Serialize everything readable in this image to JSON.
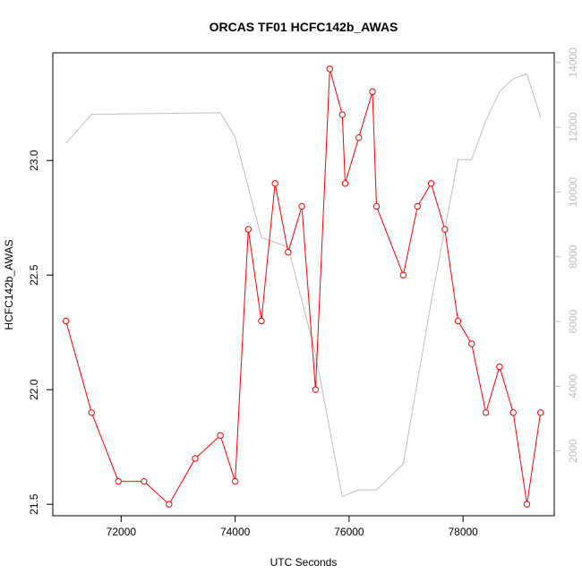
{
  "chart_data": {
    "type": "line",
    "title": "ORCAS TF01 HCFC142b_AWAS",
    "xlabel": "UTC Seconds",
    "ylabel": "HCFC142b_AWAS",
    "xlim": [
      70800,
      79600
    ],
    "ylim": [
      21.45,
      23.47
    ],
    "y2lim": [
      0,
      14300
    ],
    "x_ticks": [
      72000,
      74000,
      76000,
      78000
    ],
    "x_tick_labels": [
      "72000",
      "74000",
      "76000",
      "78000"
    ],
    "y_ticks": [
      21.5,
      22.0,
      22.5,
      23.0
    ],
    "y_tick_labels": [
      "21.5",
      "22.0",
      "22.5",
      "23.0"
    ],
    "y2_ticks": [
      2000,
      4000,
      6000,
      8000,
      10000,
      12000,
      14000
    ],
    "y2_tick_labels": [
      "2000",
      "4000",
      "6000",
      "8000",
      "10000",
      "12000",
      "14000"
    ],
    "grid": false,
    "colors": {
      "primary": "#ff0000",
      "secondary": "#bebebe",
      "axis": "#000000"
    },
    "series": [
      {
        "axis": "left",
        "color": "#ff0000",
        "marker": "open-circle",
        "points": [
          [
            71030,
            22.3
          ],
          [
            71480,
            21.9
          ],
          [
            71950,
            21.6
          ],
          [
            72400,
            21.6
          ],
          [
            72840,
            21.5
          ],
          [
            73300,
            21.7
          ],
          [
            73740,
            21.8
          ],
          [
            74000,
            21.6
          ],
          [
            74230,
            22.7
          ],
          [
            74460,
            22.3
          ],
          [
            74700,
            22.9
          ],
          [
            74930,
            22.6
          ],
          [
            75170,
            22.8
          ],
          [
            75410,
            22.0
          ],
          [
            75660,
            23.4
          ],
          [
            75880,
            23.2
          ],
          [
            75930,
            22.9
          ],
          [
            76170,
            23.1
          ],
          [
            76410,
            23.3
          ],
          [
            76480,
            22.8
          ],
          [
            76950,
            22.5
          ],
          [
            77200,
            22.8
          ],
          [
            77440,
            22.9
          ],
          [
            77680,
            22.7
          ],
          [
            77910,
            22.3
          ],
          [
            78150,
            22.2
          ],
          [
            78400,
            21.9
          ],
          [
            78640,
            22.1
          ],
          [
            78880,
            21.9
          ],
          [
            79120,
            21.5
          ],
          [
            79360,
            21.9
          ]
        ]
      },
      {
        "axis": "right",
        "color": "#bebebe",
        "marker": "none",
        "points": [
          [
            71030,
            11500
          ],
          [
            71480,
            12400
          ],
          [
            73740,
            12450
          ],
          [
            74000,
            11700
          ],
          [
            74460,
            8600
          ],
          [
            74930,
            8300
          ],
          [
            75410,
            5000
          ],
          [
            75880,
            600
          ],
          [
            76170,
            800
          ],
          [
            76480,
            800
          ],
          [
            76950,
            1600
          ],
          [
            77440,
            6600
          ],
          [
            77910,
            11000
          ],
          [
            78150,
            11000
          ],
          [
            78400,
            12200
          ],
          [
            78640,
            13100
          ],
          [
            78880,
            13500
          ],
          [
            79120,
            13650
          ],
          [
            79360,
            12300
          ]
        ]
      }
    ]
  }
}
